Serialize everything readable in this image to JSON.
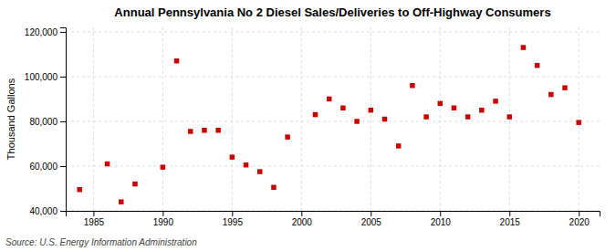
{
  "chart_data": {
    "type": "scatter",
    "title": "Annual Pennsylvania No 2 Diesel Sales/Deliveries to Off-Highway Consumers",
    "ylabel": "Thousand Gallons",
    "source": "Source: U.S. Energy Information Administration",
    "x": [
      1984,
      1986,
      1987,
      1988,
      1990,
      1991,
      1992,
      1993,
      1994,
      1995,
      1996,
      1997,
      1998,
      1999,
      2001,
      2002,
      2003,
      2004,
      2005,
      2006,
      2007,
      2008,
      2009,
      2010,
      2011,
      2012,
      2013,
      2014,
      2015,
      2016,
      2017,
      2018,
      2019,
      2020
    ],
    "values": [
      49500,
      61000,
      44000,
      52000,
      59500,
      107000,
      75500,
      76000,
      76000,
      64000,
      60500,
      57500,
      50500,
      73000,
      83000,
      90000,
      86000,
      80000,
      85000,
      81000,
      69000,
      96000,
      82000,
      88000,
      86000,
      82000,
      85000,
      89000,
      82000,
      113000,
      105000,
      92000,
      95000,
      79500
    ],
    "color": "#cc0000",
    "marker": "square",
    "xlim": [
      1983,
      2021.5
    ],
    "ylim": [
      40000,
      122000
    ],
    "xticks": [
      1985,
      1990,
      1995,
      2000,
      2005,
      2010,
      2015,
      2020
    ],
    "yticks": [
      {
        "value": 40000,
        "label": "40,000"
      },
      {
        "value": 60000,
        "label": "60,000"
      },
      {
        "value": 80000,
        "label": "80,000"
      },
      {
        "value": 100000,
        "label": "100,000"
      },
      {
        "value": 120000,
        "label": "120,000"
      }
    ],
    "grid": true
  }
}
